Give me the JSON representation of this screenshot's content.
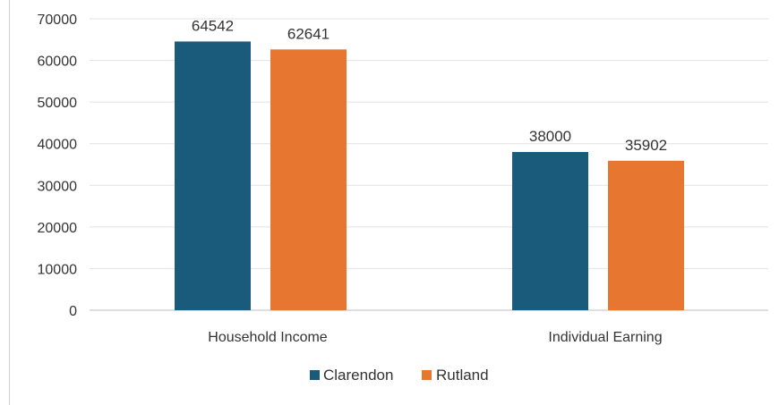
{
  "chart_data": {
    "type": "bar",
    "categories": [
      "Household Income",
      "Individual Earning"
    ],
    "series": [
      {
        "name": "Clarendon",
        "values": [
          64542,
          38000
        ],
        "color": "#1a5a7a"
      },
      {
        "name": "Rutland",
        "values": [
          62641,
          35902
        ],
        "color": "#e67630"
      }
    ],
    "title": "",
    "xlabel": "",
    "ylabel": "",
    "ylim": [
      0,
      70000
    ],
    "yticks": [
      "0",
      "10000",
      "20000",
      "30000",
      "40000",
      "50000",
      "60000",
      "70000"
    ],
    "data_labels": [
      "64542",
      "62641",
      "38000",
      "35902"
    ],
    "grid": true,
    "legend_position": "bottom"
  }
}
